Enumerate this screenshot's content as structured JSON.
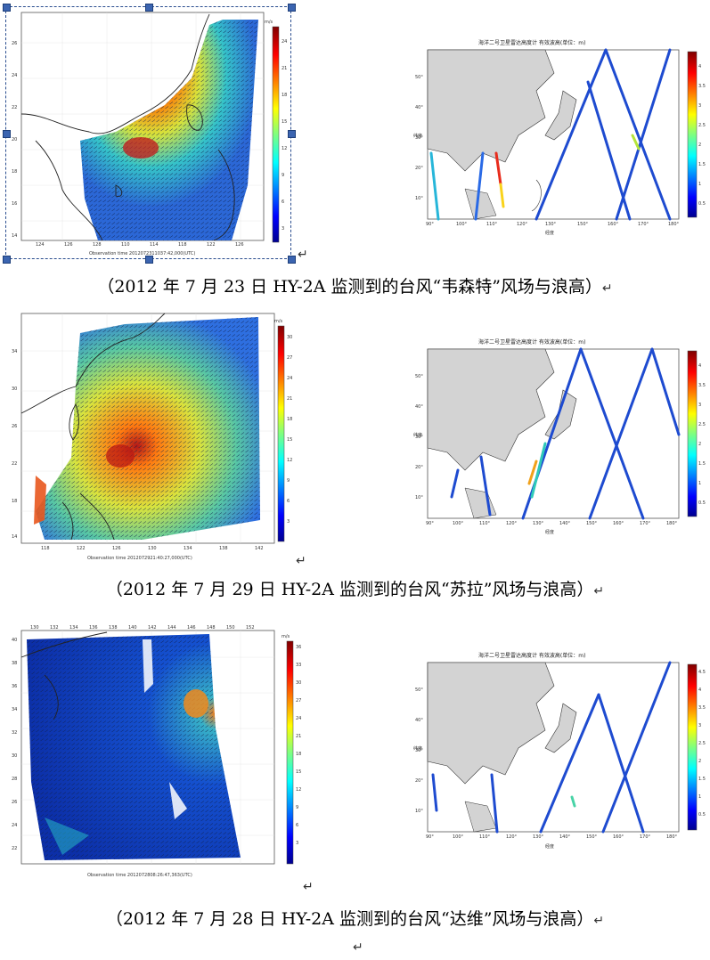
{
  "figures": [
    {
      "caption": "（2012 年 7 月 23 日 HY-2A 监测到的台风“韦森特”风场与浪高）",
      "wind_footer": "Observation time 2012072311037:42,000(UTC)",
      "wind_lon_ticks": [
        "124",
        "126",
        "128",
        "110",
        "114",
        "118",
        "122",
        "126"
      ],
      "wind_lat_ticks": [
        "26",
        "24",
        "22",
        "20",
        "18",
        "16",
        "14"
      ],
      "wind_colorbar_ticks": [
        "24",
        "21",
        "18",
        "15",
        "12",
        "9",
        "6",
        "3"
      ],
      "wave_title": "海洋二号卫星雷达高度计 有效波高(单位：m)",
      "wave_lon_ticks": [
        "90°",
        "100°",
        "110°",
        "120°",
        "130°",
        "150°",
        "160°",
        "170°",
        "180°"
      ],
      "wave_lat_ticks": [
        "50°",
        "40°",
        "30°",
        "20°",
        "10°"
      ],
      "wave_colorbar_ticks": [
        "4",
        "3.5",
        "3",
        "2.5",
        "2",
        "1.5",
        "1",
        "0.5"
      ],
      "wave_xlabel": "经度",
      "wave_ylabel": "纬度"
    },
    {
      "caption": "（2012 年 7 月 29 日 HY-2A 监测到的台风“苏拉”风场与浪高）",
      "wind_footer": "Observation time 2012072921:40:27,000(UTC)",
      "wind_lon_ticks": [
        "118",
        "122",
        "126",
        "130",
        "134",
        "138",
        "142"
      ],
      "wind_lat_ticks": [
        "34",
        "30",
        "26",
        "22",
        "18",
        "14"
      ],
      "wind_colorbar_ticks": [
        "30",
        "27",
        "24",
        "21",
        "18",
        "15",
        "12",
        "9",
        "6",
        "3"
      ],
      "wave_title": "海洋二号卫星雷达高度计 有效波高(单位：m)",
      "wave_lon_ticks": [
        "90°",
        "100°",
        "110°",
        "120°",
        "130°",
        "140°",
        "150°",
        "160°",
        "170°",
        "180°"
      ],
      "wave_lat_ticks": [
        "50°",
        "40°",
        "30°",
        "20°",
        "10°"
      ],
      "wave_colorbar_ticks": [
        "4",
        "3.5",
        "3",
        "2.5",
        "2",
        "1.5",
        "1",
        "0.5"
      ],
      "wave_xlabel": "经度",
      "wave_ylabel": "纬度"
    },
    {
      "caption": "（2012 年 7 月 28 日 HY-2A 监测到的台风“达维”风场与浪高）",
      "wind_footer": "Observation time 2012072808:26:47,363(UTC)",
      "wind_lon_ticks": [
        "130",
        "132",
        "134",
        "136",
        "138",
        "140",
        "142",
        "144",
        "146",
        "148",
        "150",
        "152"
      ],
      "wind_lat_ticks": [
        "40",
        "38",
        "36",
        "34",
        "32",
        "30",
        "28",
        "26",
        "24",
        "22"
      ],
      "wind_colorbar_ticks": [
        "36",
        "33",
        "30",
        "27",
        "24",
        "21",
        "18",
        "15",
        "12",
        "9",
        "6",
        "3"
      ],
      "wave_title": "海洋二号卫星雷达高度计 有效波高(单位：m)",
      "wave_lon_ticks": [
        "90°",
        "100°",
        "110°",
        "120°",
        "130°",
        "140°",
        "150°",
        "160°",
        "170°",
        "180°"
      ],
      "wave_lat_ticks": [
        "50°",
        "40°",
        "30°",
        "20°",
        "10°"
      ],
      "wave_colorbar_ticks": [
        "4.5",
        "4",
        "3.5",
        "3",
        "2.5",
        "2",
        "1.5",
        "1",
        "0.5"
      ],
      "wave_xlabel": "经度",
      "wave_ylabel": "纬度"
    }
  ],
  "colorbar_units": "m/s",
  "return_mark": "↵"
}
